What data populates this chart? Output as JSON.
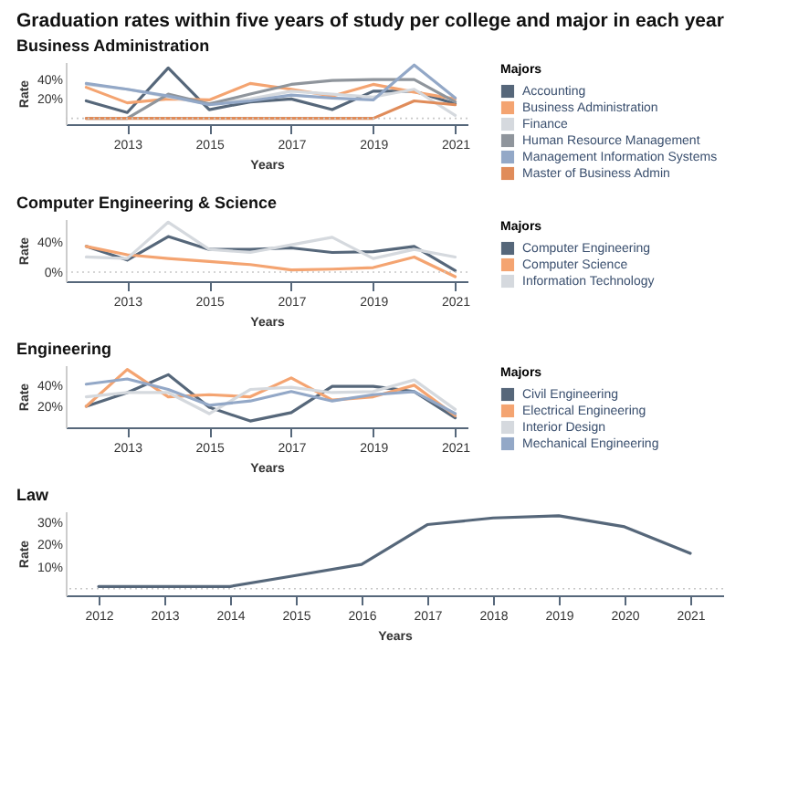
{
  "chart_data": [
    {
      "type": "line",
      "title": "Graduation rates within five years of study per college and major in each year",
      "subtitle": "Business Administration",
      "xlabel": "Years",
      "ylabel": "Rate",
      "legend_title": "Majors",
      "legend": "right",
      "grid": false,
      "line_style": "solid",
      "marker": "none",
      "x": [
        2012,
        2013,
        2014,
        2015,
        2016,
        2017,
        2018,
        2019,
        2020,
        2021
      ],
      "xlim": [
        2011.5,
        2021.3
      ],
      "xticks": [
        2013,
        2015,
        2017,
        2019,
        2021
      ],
      "ylim": [
        -6,
        58
      ],
      "yticks": [
        {
          "value": 20,
          "label": "20%"
        },
        {
          "value": 40,
          "label": "40%"
        }
      ],
      "ref_lines": [
        {
          "axis": "y",
          "value": 0,
          "color": "#c8c8c8",
          "line_style": "dotted"
        }
      ],
      "series": [
        {
          "name": "Accounting",
          "color": "#56677a",
          "values": [
            18,
            6,
            52,
            9,
            17,
            20,
            9,
            28,
            28,
            15
          ]
        },
        {
          "name": "Business Administration",
          "color": "#f4a471",
          "values": [
            32,
            16,
            20,
            19,
            36,
            30,
            23,
            35,
            27,
            20
          ]
        },
        {
          "name": "Finance",
          "color": "#d5d9de",
          "values": [
            35,
            30,
            22,
            15,
            20,
            28,
            25,
            22,
            30,
            3
          ]
        },
        {
          "name": "Human Resource Management",
          "color": "#8f959c",
          "values": [
            0,
            0,
            25,
            15,
            25,
            35,
            39,
            40,
            40,
            17
          ]
        },
        {
          "name": "Management Information Systems",
          "color": "#93a8c7",
          "values": [
            36,
            30,
            23,
            14,
            18,
            24,
            21,
            19,
            55,
            21
          ]
        },
        {
          "name": "Master of Business Admin",
          "color": "#e08c5a",
          "values": [
            0,
            0,
            0,
            0,
            0,
            0,
            0,
            0,
            18,
            14
          ]
        }
      ]
    },
    {
      "type": "line",
      "title": "Computer Engineering & Science",
      "xlabel": "Years",
      "ylabel": "Rate",
      "legend_title": "Majors",
      "legend": "right",
      "grid": false,
      "line_style": "solid",
      "marker": "none",
      "x": [
        2012,
        2013,
        2014,
        2015,
        2016,
        2017,
        2018,
        2019,
        2020,
        2021
      ],
      "xlim": [
        2011.5,
        2021.3
      ],
      "xticks": [
        2013,
        2015,
        2017,
        2019,
        2021
      ],
      "ylim": [
        -12,
        70
      ],
      "yticks": [
        {
          "value": 0,
          "label": "0%"
        },
        {
          "value": 40,
          "label": "40%"
        }
      ],
      "ref_lines": [
        {
          "axis": "y",
          "value": 0,
          "color": "#c8c8c8",
          "line_style": "dotted"
        }
      ],
      "series": [
        {
          "name": "Computer Engineering",
          "color": "#56677a",
          "values": [
            34,
            16,
            47,
            30,
            30,
            32,
            26,
            27,
            34,
            2
          ]
        },
        {
          "name": "Computer Science",
          "color": "#f4a471",
          "values": [
            34,
            23,
            18,
            14,
            10,
            3,
            4,
            6,
            20,
            -6
          ]
        },
        {
          "name": "Information Technology",
          "color": "#d5d9de",
          "values": [
            20,
            18,
            66,
            30,
            26,
            36,
            46,
            18,
            30,
            20
          ]
        }
      ]
    },
    {
      "type": "line",
      "title": "Engineering",
      "xlabel": "Years",
      "ylabel": "Rate",
      "legend_title": "Majors",
      "legend": "right",
      "grid": false,
      "line_style": "solid",
      "marker": "none",
      "x": [
        2012,
        2013,
        2014,
        2015,
        2016,
        2017,
        2018,
        2019,
        2020,
        2021
      ],
      "xlim": [
        2011.5,
        2021.3
      ],
      "xticks": [
        2013,
        2015,
        2017,
        2019,
        2021
      ],
      "ylim": [
        0,
        59
      ],
      "yticks": [
        {
          "value": 20,
          "label": "20%"
        },
        {
          "value": 40,
          "label": "40%"
        }
      ],
      "series": [
        {
          "name": "Civil Engineering",
          "color": "#56677a",
          "values": [
            20,
            33,
            50,
            19,
            6,
            14,
            39,
            39,
            34,
            9
          ]
        },
        {
          "name": "Electrical Engineering",
          "color": "#f4a471",
          "values": [
            20,
            55,
            29,
            31,
            29,
            47,
            26,
            29,
            40,
            11
          ]
        },
        {
          "name": "Interior Design",
          "color": "#d5d9de",
          "values": [
            29,
            33,
            33,
            13,
            36,
            38,
            33,
            34,
            45,
            17
          ]
        },
        {
          "name": "Mechanical Engineering",
          "color": "#93a8c7",
          "values": [
            41,
            46,
            36,
            21,
            25,
            34,
            25,
            31,
            34,
            13
          ]
        }
      ]
    },
    {
      "type": "line",
      "title": "Law",
      "xlabel": "Years",
      "ylabel": "Rate",
      "grid": false,
      "line_style": "solid",
      "marker": "none",
      "x": [
        2012,
        2013,
        2014,
        2015,
        2016,
        2017,
        2018,
        2019,
        2020,
        2021
      ],
      "xlim": [
        2011.5,
        2021.5
      ],
      "xticks": [
        2012,
        2013,
        2014,
        2015,
        2016,
        2017,
        2018,
        2019,
        2020,
        2021
      ],
      "ylim": [
        -3,
        35
      ],
      "yticks": [
        {
          "value": 10,
          "label": "10%"
        },
        {
          "value": 20,
          "label": "20%"
        },
        {
          "value": 30,
          "label": "30%"
        }
      ],
      "ref_lines": [
        {
          "axis": "y",
          "value": 0,
          "color": "#c8c8c8",
          "line_style": "dotted"
        }
      ],
      "series": [
        {
          "color": "#56677a",
          "values": [
            1,
            1,
            1,
            6,
            11,
            29,
            32,
            33,
            28,
            16
          ]
        }
      ]
    }
  ]
}
